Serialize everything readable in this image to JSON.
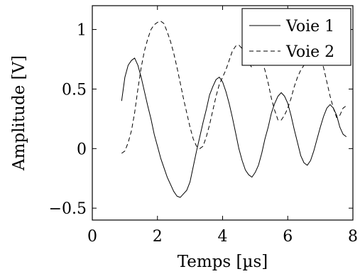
{
  "chart_data": {
    "type": "line",
    "xlabel": "Temps [µs]",
    "ylabel": "Amplitude [V]",
    "xlim": [
      0,
      8
    ],
    "ylim": [
      -0.6,
      1.2
    ],
    "xticks": [
      0,
      2,
      4,
      6,
      8
    ],
    "xtick_labels": [
      "0",
      "2",
      "4",
      "6",
      "8"
    ],
    "yticks": [
      -0.5,
      0,
      0.5,
      1
    ],
    "ytick_labels": [
      "−0.5",
      "0",
      "0.5",
      "1"
    ],
    "grid": false,
    "legend_position": "top-right",
    "series": [
      {
        "name": "Voie 1",
        "line_style": "solid",
        "color": "#000000",
        "x": [
          0.9,
          1.0,
          1.1,
          1.2,
          1.3,
          1.4,
          1.5,
          1.6,
          1.7,
          1.8,
          1.9,
          2.0,
          2.1,
          2.2,
          2.3,
          2.4,
          2.5,
          2.6,
          2.7,
          2.8,
          2.9,
          3.0,
          3.1,
          3.2,
          3.3,
          3.4,
          3.5,
          3.6,
          3.7,
          3.8,
          3.9,
          4.0,
          4.1,
          4.2,
          4.3,
          4.4,
          4.5,
          4.6,
          4.7,
          4.8,
          4.9,
          5.0,
          5.1,
          5.2,
          5.3,
          5.4,
          5.5,
          5.6,
          5.7,
          5.8,
          5.9,
          6.0,
          6.1,
          6.2,
          6.3,
          6.4,
          6.5,
          6.6,
          6.7,
          6.8,
          6.9,
          7.0,
          7.1,
          7.2,
          7.3,
          7.4,
          7.5,
          7.6,
          7.7,
          7.8
        ],
        "y": [
          0.4,
          0.6,
          0.7,
          0.74,
          0.76,
          0.7,
          0.6,
          0.48,
          0.36,
          0.25,
          0.12,
          0.02,
          -0.08,
          -0.16,
          -0.24,
          -0.3,
          -0.36,
          -0.4,
          -0.41,
          -0.38,
          -0.35,
          -0.28,
          -0.15,
          -0.02,
          0.1,
          0.22,
          0.33,
          0.45,
          0.52,
          0.58,
          0.6,
          0.56,
          0.48,
          0.38,
          0.26,
          0.13,
          0.0,
          -0.1,
          -0.18,
          -0.22,
          -0.24,
          -0.2,
          -0.14,
          -0.04,
          0.08,
          0.18,
          0.3,
          0.38,
          0.44,
          0.47,
          0.44,
          0.38,
          0.28,
          0.16,
          0.05,
          -0.06,
          -0.12,
          -0.14,
          -0.1,
          -0.02,
          0.08,
          0.18,
          0.27,
          0.34,
          0.37,
          0.34,
          0.28,
          0.18,
          0.12,
          0.1
        ]
      },
      {
        "name": "Voie 2",
        "line_style": "dashed",
        "color": "#000000",
        "x": [
          0.9,
          1.0,
          1.1,
          1.2,
          1.3,
          1.4,
          1.5,
          1.6,
          1.7,
          1.8,
          1.9,
          2.0,
          2.1,
          2.2,
          2.3,
          2.4,
          2.5,
          2.6,
          2.7,
          2.8,
          2.9,
          3.0,
          3.1,
          3.2,
          3.3,
          3.4,
          3.5,
          3.6,
          3.7,
          3.8,
          3.9,
          4.0,
          4.1,
          4.2,
          4.3,
          4.4,
          4.5,
          4.6,
          4.7,
          4.8,
          4.9,
          5.0,
          5.1,
          5.2,
          5.3,
          5.4,
          5.5,
          5.6,
          5.7,
          5.8,
          5.9,
          6.0,
          6.1,
          6.2,
          6.3,
          6.4,
          6.5,
          6.6,
          6.7,
          6.8,
          6.9,
          7.0,
          7.1,
          7.2,
          7.3,
          7.4,
          7.5,
          7.6,
          7.7,
          7.8
        ],
        "y": [
          -0.04,
          -0.02,
          0.05,
          0.15,
          0.3,
          0.5,
          0.68,
          0.82,
          0.92,
          1.0,
          1.04,
          1.06,
          1.07,
          1.05,
          0.98,
          0.9,
          0.8,
          0.68,
          0.55,
          0.42,
          0.3,
          0.18,
          0.08,
          0.02,
          0.0,
          0.02,
          0.1,
          0.2,
          0.32,
          0.44,
          0.54,
          0.6,
          0.66,
          0.74,
          0.82,
          0.86,
          0.87,
          0.84,
          0.78,
          0.72,
          0.68,
          0.72,
          0.76,
          0.74,
          0.66,
          0.55,
          0.42,
          0.32,
          0.24,
          0.24,
          0.28,
          0.34,
          0.42,
          0.52,
          0.6,
          0.66,
          0.7,
          0.72,
          0.74,
          0.76,
          0.8,
          0.76,
          0.68,
          0.56,
          0.44,
          0.34,
          0.26,
          0.28,
          0.34,
          0.36
        ]
      }
    ]
  }
}
